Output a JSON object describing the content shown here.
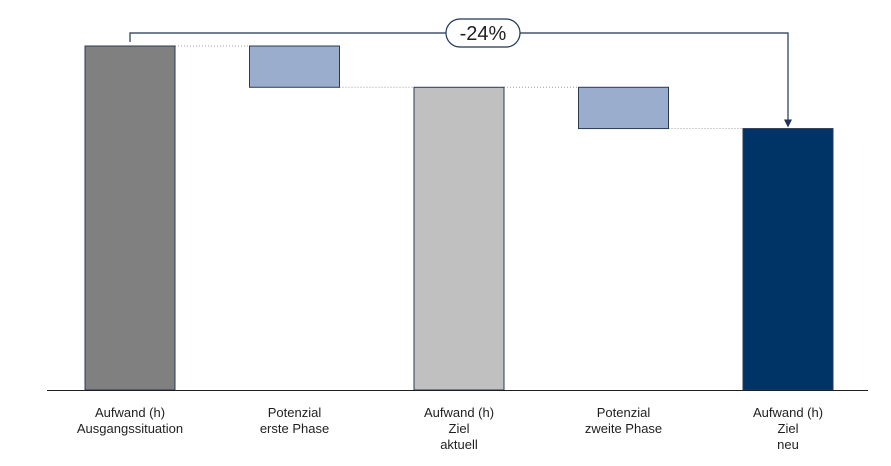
{
  "chart_data": {
    "type": "waterfall",
    "categories": [
      [
        "Aufwand (h)",
        "Ausgangssituation"
      ],
      [
        "Potenzial",
        "erste Phase"
      ],
      [
        "Aufwand (h)",
        "Ziel",
        "aktuell"
      ],
      [
        "Potenzial",
        "zweite Phase"
      ],
      [
        "Aufwand (h)",
        "Ziel",
        "neu"
      ]
    ],
    "bars": [
      {
        "kind": "total",
        "start": 0,
        "end": 100,
        "color": "#808080"
      },
      {
        "kind": "delta",
        "start": 100,
        "end": 88,
        "color": "#9badcd"
      },
      {
        "kind": "total",
        "start": 0,
        "end": 88,
        "color": "#c0c0c0"
      },
      {
        "kind": "delta",
        "start": 88,
        "end": 76,
        "color": "#9badcd"
      },
      {
        "kind": "total",
        "start": 0,
        "end": 76,
        "color": "#003366"
      }
    ],
    "ylim": [
      0,
      100
    ],
    "annotation": {
      "text": "-24%",
      "from_category": 0,
      "to_category": 4
    },
    "title": "",
    "xlabel": "",
    "ylabel": ""
  }
}
